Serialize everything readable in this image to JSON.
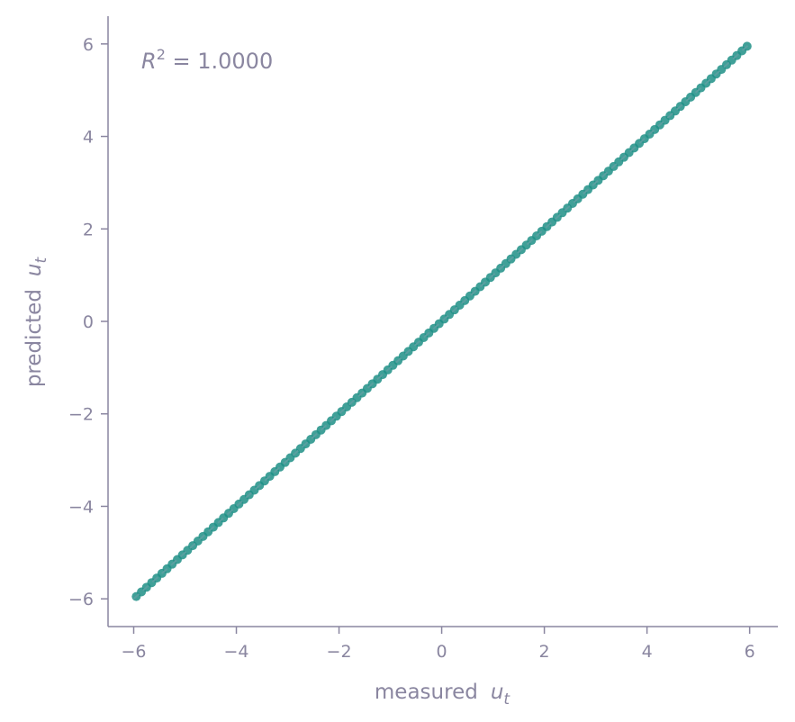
{
  "chart_data": {
    "type": "scatter",
    "xlabel": "measured",
    "ylabel": "predicted",
    "axis_var": "u",
    "axis_var_sub": "t",
    "annotation": {
      "var": "R",
      "sup": "2",
      "text": " = 1.0000"
    },
    "xlim": [
      -6.5,
      6.55
    ],
    "ylim": [
      -6.6,
      6.6
    ],
    "xticks": [
      -6,
      -4,
      -2,
      0,
      2,
      4,
      6
    ],
    "yticks": [
      -6,
      -4,
      -2,
      0,
      2,
      4,
      6
    ],
    "xtick_labels": [
      "−6",
      "−4",
      "−2",
      "0",
      "2",
      "4",
      "6"
    ],
    "ytick_labels": [
      "−6",
      "−4",
      "−2",
      "0",
      "2",
      "4",
      "6"
    ],
    "series": [
      {
        "marker_color": "#1f8f86",
        "x": [
          -5.95,
          -5.85,
          -5.75,
          -5.65,
          -5.55,
          -5.45,
          -5.35,
          -5.25,
          -5.15,
          -5.05,
          -4.95,
          -4.85,
          -4.75,
          -4.65,
          -4.55,
          -4.45,
          -4.35,
          -4.25,
          -4.15,
          -4.05,
          -3.95,
          -3.85,
          -3.75,
          -3.65,
          -3.55,
          -3.45,
          -3.35,
          -3.25,
          -3.15,
          -3.05,
          -2.95,
          -2.85,
          -2.75,
          -2.65,
          -2.55,
          -2.45,
          -2.35,
          -2.25,
          -2.15,
          -2.05,
          -1.95,
          -1.85,
          -1.75,
          -1.65,
          -1.55,
          -1.45,
          -1.35,
          -1.25,
          -1.15,
          -1.05,
          -0.95,
          -0.85,
          -0.75,
          -0.65,
          -0.55,
          -0.45,
          -0.35,
          -0.25,
          -0.15,
          -0.05,
          0.05,
          0.15,
          0.25,
          0.35,
          0.45,
          0.55,
          0.65,
          0.75,
          0.85,
          0.95,
          1.05,
          1.15,
          1.25,
          1.35,
          1.45,
          1.55,
          1.65,
          1.75,
          1.85,
          1.95,
          2.05,
          2.15,
          2.25,
          2.35,
          2.45,
          2.55,
          2.65,
          2.75,
          2.85,
          2.95,
          3.05,
          3.15,
          3.25,
          3.35,
          3.45,
          3.55,
          3.65,
          3.75,
          3.85,
          3.95,
          4.05,
          4.15,
          4.25,
          4.35,
          4.45,
          4.55,
          4.65,
          4.75,
          4.85,
          4.95,
          5.05,
          5.15,
          5.25,
          5.35,
          5.45,
          5.55,
          5.65,
          5.75,
          5.85,
          5.95
        ],
        "y": [
          -5.95,
          -5.85,
          -5.75,
          -5.65,
          -5.55,
          -5.45,
          -5.35,
          -5.25,
          -5.15,
          -5.05,
          -4.95,
          -4.85,
          -4.75,
          -4.65,
          -4.55,
          -4.45,
          -4.35,
          -4.25,
          -4.15,
          -4.05,
          -3.95,
          -3.85,
          -3.75,
          -3.65,
          -3.55,
          -3.45,
          -3.35,
          -3.25,
          -3.15,
          -3.05,
          -2.95,
          -2.85,
          -2.75,
          -2.65,
          -2.55,
          -2.45,
          -2.35,
          -2.25,
          -2.15,
          -2.05,
          -1.95,
          -1.85,
          -1.75,
          -1.65,
          -1.55,
          -1.45,
          -1.35,
          -1.25,
          -1.15,
          -1.05,
          -0.95,
          -0.85,
          -0.75,
          -0.65,
          -0.55,
          -0.45,
          -0.35,
          -0.25,
          -0.15,
          -0.05,
          0.05,
          0.15,
          0.25,
          0.35,
          0.45,
          0.55,
          0.65,
          0.75,
          0.85,
          0.95,
          1.05,
          1.15,
          1.25,
          1.35,
          1.45,
          1.55,
          1.65,
          1.75,
          1.85,
          1.95,
          2.05,
          2.15,
          2.25,
          2.35,
          2.45,
          2.55,
          2.65,
          2.75,
          2.85,
          2.95,
          3.05,
          3.15,
          3.25,
          3.35,
          3.45,
          3.55,
          3.65,
          3.75,
          3.85,
          3.95,
          4.05,
          4.15,
          4.25,
          4.35,
          4.45,
          4.55,
          4.65,
          4.75,
          4.85,
          4.95,
          5.05,
          5.15,
          5.25,
          5.35,
          5.45,
          5.55,
          5.65,
          5.75,
          5.85,
          5.95
        ]
      }
    ],
    "reference_line": {
      "style": "dashed",
      "from": [
        -6,
        -6
      ],
      "to": [
        6,
        6
      ],
      "color": "#5a9fa0"
    },
    "grid": false,
    "colors": {
      "axis": "#8a86a0",
      "text": "#8a86a0",
      "points": "#1f8f86"
    }
  }
}
